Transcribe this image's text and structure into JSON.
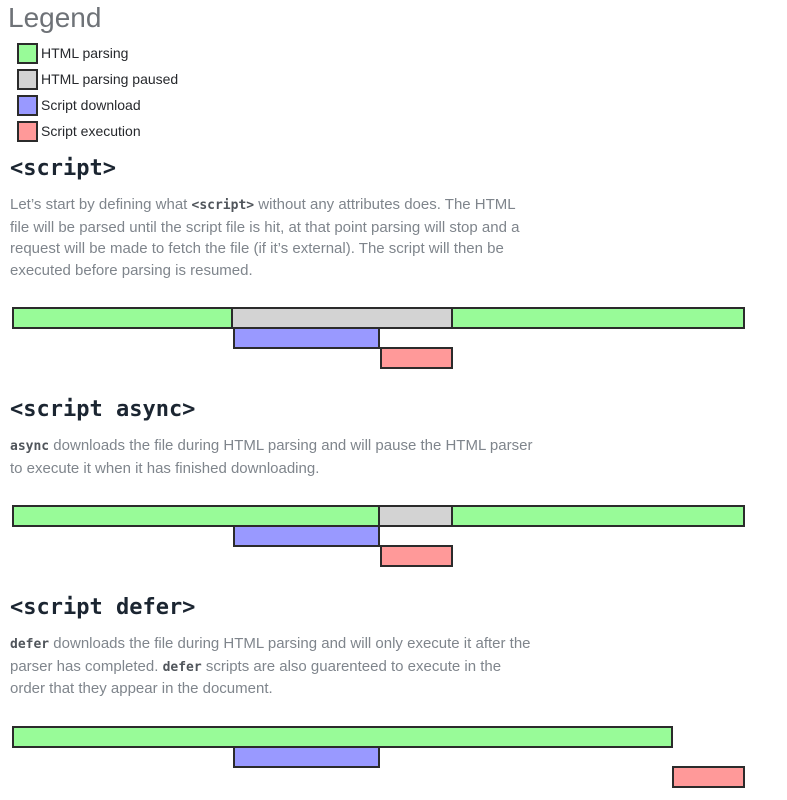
{
  "colors": {
    "parse": "#98fb98",
    "paused": "#d3d3d3",
    "download": "#9999ff",
    "execute": "#ff9999",
    "bar_border": "#2b2b2b"
  },
  "legend": {
    "title": "Legend",
    "items": [
      {
        "label": "HTML parsing",
        "type": "parse"
      },
      {
        "label": "HTML parsing paused",
        "type": "paused"
      },
      {
        "label": "Script download",
        "type": "download"
      },
      {
        "label": "Script execution",
        "type": "execute"
      }
    ]
  },
  "sections": [
    {
      "heading": "<script>",
      "parts": [
        {
          "text": "Let’s start by defining what ",
          "code": false
        },
        {
          "text": "<script>",
          "code": true
        },
        {
          "text": " without any attributes does. The HTML file will be parsed until the script file is hit, at that point parsing will stop and a request will be made to fetch the file (if it’s external). The script will then be executed before parsing is resumed.",
          "code": false
        }
      ],
      "diagram": {
        "bars": [
          {
            "row": 0,
            "start": 12,
            "end": 233,
            "type": "parse"
          },
          {
            "row": 0,
            "start": 233,
            "end": 453,
            "type": "paused"
          },
          {
            "row": 0,
            "start": 453,
            "end": 745,
            "type": "parse"
          },
          {
            "row": 1,
            "start": 233,
            "end": 380,
            "type": "download"
          },
          {
            "row": 2,
            "start": 380,
            "end": 453,
            "type": "execute"
          }
        ]
      }
    },
    {
      "heading": "<script async>",
      "parts": [
        {
          "text": "async",
          "code": true
        },
        {
          "text": " downloads the file during HTML parsing and will pause the HTML parser to execute it when it has finished downloading.",
          "code": false
        }
      ],
      "diagram": {
        "bars": [
          {
            "row": 0,
            "start": 12,
            "end": 380,
            "type": "parse"
          },
          {
            "row": 0,
            "start": 380,
            "end": 453,
            "type": "paused"
          },
          {
            "row": 0,
            "start": 453,
            "end": 745,
            "type": "parse"
          },
          {
            "row": 1,
            "start": 233,
            "end": 380,
            "type": "download"
          },
          {
            "row": 2,
            "start": 380,
            "end": 453,
            "type": "execute"
          }
        ]
      }
    },
    {
      "heading": "<script defer>",
      "parts": [
        {
          "text": "defer",
          "code": true
        },
        {
          "text": " downloads the file during HTML parsing and will only execute it after the parser has completed. ",
          "code": false
        },
        {
          "text": "defer",
          "code": true
        },
        {
          "text": " scripts are also guarenteed to execute in the order that they appear in the document.",
          "code": false
        }
      ],
      "diagram": {
        "bars": [
          {
            "row": 0,
            "start": 12,
            "end": 673,
            "type": "parse"
          },
          {
            "row": 1,
            "start": 233,
            "end": 380,
            "type": "download"
          },
          {
            "row": 2,
            "start": 672,
            "end": 745,
            "type": "execute"
          }
        ]
      }
    }
  ]
}
